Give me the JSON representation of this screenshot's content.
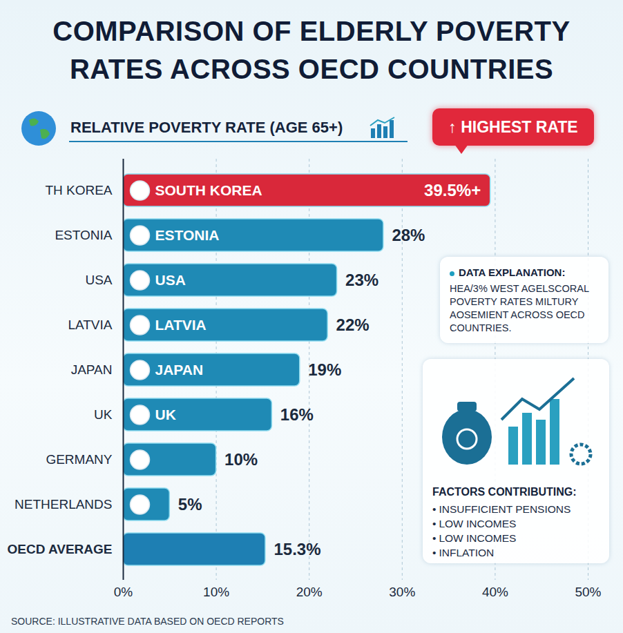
{
  "chart_data": {
    "type": "bar",
    "orientation": "horizontal",
    "title": "COMPARISON OF ELDERLY POVERTY RATES ACROSS OECD COUNTRIES",
    "subtitle": "RELATIVE POVERTY RATE (AGE 65+)",
    "highlight_label": "↑ HIGHEST RATE",
    "categories": [
      "TH KOREA",
      "ESTONIA",
      "USA",
      "LATVIA",
      "JAPAN",
      "UK",
      "GERMANY",
      "NETHERLANDS",
      "OECD AVERAGE"
    ],
    "bar_labels": [
      "SOUTH KOREA",
      "ESTONIA",
      "USA",
      "LATVIA",
      "JAPAN",
      "UK",
      null,
      null,
      null
    ],
    "values": [
      39.5,
      28,
      23,
      22,
      19,
      16,
      10,
      5,
      15.3
    ],
    "value_labels": [
      "39.5%+",
      "28%",
      "23%",
      "22%",
      "19%",
      "16%",
      "10%",
      "5%",
      "15.3%"
    ],
    "data_labels": true,
    "colors": [
      "#d9283a",
      "#1f8ab5",
      "#1f8ab5",
      "#1f8ab5",
      "#1f8ab5",
      "#1f8ab5",
      "#1f8ab5",
      "#1f8ab5",
      "#1e7fb3"
    ],
    "xlim": [
      0,
      50
    ],
    "xticks": [
      {
        "value": 0,
        "label": "0%"
      },
      {
        "value": 10,
        "label": "10%"
      },
      {
        "value": 20,
        "label": "20%"
      },
      {
        "value": 30,
        "label": "30%"
      },
      {
        "value": 40,
        "label": "40%"
      },
      {
        "value": 50,
        "label": "50%"
      }
    ],
    "grid": true,
    "explanation": {
      "title": "DATA EXPLANATION:",
      "text": "HEA/3% WEST AGELSCORAL POVERTY RATES MILTURY AOSEMIENT ACROSS OECD COUNTRIES."
    },
    "factors": {
      "title": "FACTORS CONTRIBUTING:",
      "items": [
        "INSUFFICIENT PENSIONS",
        "LOW INCOMES",
        "LOW INCOMES",
        "INFLATION"
      ]
    },
    "source": "SOURCE: ILLUSTRATIVE DATA BASED ON OECD REPORTS"
  }
}
